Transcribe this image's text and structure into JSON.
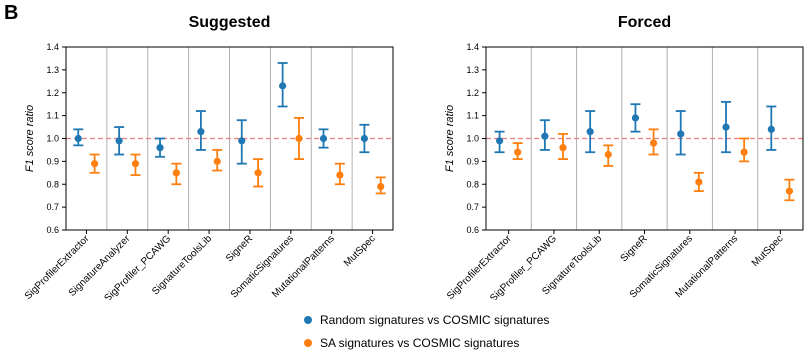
{
  "panel_label": "B",
  "colors": {
    "random": "#1f77b4",
    "sa": "#ff7f0e",
    "ref_line": "#f07c7c",
    "separator": "#b0b0b0"
  },
  "legend": [
    {
      "label": "Random signatures vs COSMIC signatures",
      "color": "#1f77b4"
    },
    {
      "label": "SA signatures vs COSMIC signatures",
      "color": "#ff7f0e"
    }
  ],
  "chart_data": [
    {
      "type": "scatter",
      "title": "Suggested",
      "ylabel": "F1 score ratio",
      "ylim": [
        0.6,
        1.4
      ],
      "yticks": [
        "0.6",
        "0.7",
        "0.8",
        "0.9",
        "1.0",
        "1.1",
        "1.2",
        "1.3",
        "1.4"
      ],
      "reference_line": 1.0,
      "categories": [
        "SigProfilerExtractor",
        "SignatureAnalyzer",
        "SigProfiler_PCAWG",
        "SignatureToolsLib",
        "SigneR",
        "SomaticSignatures",
        "MutationalPatterns",
        "MutSpec"
      ],
      "series": [
        {
          "name": "Random signatures vs COSMIC signatures",
          "values": [
            1.0,
            0.99,
            0.96,
            1.03,
            0.99,
            1.23,
            1.0,
            1.0
          ],
          "lower": [
            0.97,
            0.93,
            0.92,
            0.95,
            0.89,
            1.14,
            0.96,
            0.94
          ],
          "upper": [
            1.04,
            1.05,
            1.0,
            1.12,
            1.08,
            1.33,
            1.04,
            1.06
          ]
        },
        {
          "name": "SA signatures vs COSMIC signatures",
          "values": [
            0.89,
            0.89,
            0.85,
            0.9,
            0.85,
            1.0,
            0.84,
            0.79
          ],
          "lower": [
            0.85,
            0.84,
            0.8,
            0.86,
            0.79,
            0.91,
            0.8,
            0.76
          ],
          "upper": [
            0.93,
            0.93,
            0.89,
            0.95,
            0.91,
            1.09,
            0.89,
            0.83
          ]
        }
      ]
    },
    {
      "type": "scatter",
      "title": "Forced",
      "ylabel": "F1 score ratio",
      "ylim": [
        0.6,
        1.4
      ],
      "yticks": [
        "0.6",
        "0.7",
        "0.8",
        "0.9",
        "1.0",
        "1.1",
        "1.2",
        "1.3",
        "1.4"
      ],
      "reference_line": 1.0,
      "categories": [
        "SigProfilerExtractor",
        "SigProfiler_PCAWG",
        "SignatureToolsLib",
        "SigneR",
        "SomaticSignatures",
        "MutationalPatterns",
        "MutSpec"
      ],
      "series": [
        {
          "name": "Random signatures vs COSMIC signatures",
          "values": [
            0.99,
            1.01,
            1.03,
            1.09,
            1.02,
            1.05,
            1.04
          ],
          "lower": [
            0.94,
            0.95,
            0.94,
            1.03,
            0.93,
            0.94,
            0.95
          ],
          "upper": [
            1.03,
            1.08,
            1.12,
            1.15,
            1.12,
            1.16,
            1.14
          ]
        },
        {
          "name": "SA signatures vs COSMIC signatures",
          "values": [
            0.94,
            0.96,
            0.93,
            0.98,
            0.81,
            0.94,
            0.77
          ],
          "lower": [
            0.91,
            0.91,
            0.88,
            0.93,
            0.77,
            0.9,
            0.73
          ],
          "upper": [
            0.98,
            1.02,
            0.97,
            1.04,
            0.85,
            1.0,
            0.82
          ]
        }
      ]
    }
  ]
}
